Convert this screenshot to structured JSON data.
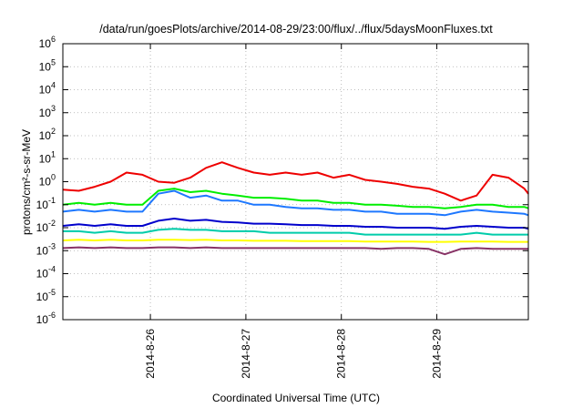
{
  "chart_data": {
    "type": "line",
    "title": "/data/run/goesPlots/archive/2014-08-29/23:00/flux/../flux/5daysMoonFluxes.txt",
    "xlabel": "Coordinated Universal Time (UTC)",
    "ylabel": "protons/cm²-s-sr-MeV",
    "y_scale": "log",
    "y_exponent_range": [
      -6,
      6
    ],
    "y_tick_base": "10",
    "y_tick_exponents": [
      "-6",
      "-5",
      "-4",
      "-3",
      "-2",
      "-1",
      "0",
      "1",
      "2",
      "3",
      "4",
      "5",
      "6"
    ],
    "x_range": [
      "2014-08-25 02:00",
      "2014-08-29 23:00"
    ],
    "x_tick_labels": [
      "2014-8-26",
      "2014-8-27",
      "2014-8-28",
      "2014-8-29"
    ],
    "grid": true,
    "x": [
      "2014-08-25 02:00",
      "2014-08-25 06:00",
      "2014-08-25 10:00",
      "2014-08-25 14:00",
      "2014-08-25 18:00",
      "2014-08-25 22:00",
      "2014-08-26 02:00",
      "2014-08-26 06:00",
      "2014-08-26 10:00",
      "2014-08-26 14:00",
      "2014-08-26 18:00",
      "2014-08-26 22:00",
      "2014-08-27 02:00",
      "2014-08-27 06:00",
      "2014-08-27 10:00",
      "2014-08-27 14:00",
      "2014-08-27 18:00",
      "2014-08-27 22:00",
      "2014-08-28 02:00",
      "2014-08-28 06:00",
      "2014-08-28 10:00",
      "2014-08-28 14:00",
      "2014-08-28 18:00",
      "2014-08-28 22:00",
      "2014-08-29 02:00",
      "2014-08-29 06:00",
      "2014-08-29 10:00",
      "2014-08-29 14:00",
      "2014-08-29 18:00",
      "2014-08-29 22:00",
      "2014-08-29 23:00"
    ],
    "series": [
      {
        "color": "#ee0000",
        "values": [
          0.45,
          0.4,
          0.6,
          1.0,
          2.5,
          2.0,
          1.0,
          0.9,
          1.5,
          4.0,
          7.0,
          4.0,
          2.5,
          2.0,
          2.5,
          2.0,
          2.5,
          1.5,
          2.0,
          1.2,
          1.0,
          0.8,
          0.6,
          0.5,
          0.3,
          0.15,
          0.25,
          2.0,
          1.5,
          0.5,
          0.3
        ]
      },
      {
        "color": "#00ee00",
        "values": [
          0.1,
          0.12,
          0.1,
          0.12,
          0.1,
          0.1,
          0.4,
          0.5,
          0.35,
          0.4,
          0.3,
          0.25,
          0.2,
          0.2,
          0.18,
          0.15,
          0.15,
          0.12,
          0.12,
          0.1,
          0.1,
          0.09,
          0.08,
          0.08,
          0.07,
          0.08,
          0.1,
          0.1,
          0.08,
          0.08,
          0.07
        ]
      },
      {
        "color": "#1e78ff",
        "values": [
          0.05,
          0.06,
          0.05,
          0.06,
          0.05,
          0.05,
          0.3,
          0.4,
          0.2,
          0.25,
          0.15,
          0.15,
          0.1,
          0.1,
          0.08,
          0.07,
          0.07,
          0.06,
          0.06,
          0.05,
          0.05,
          0.04,
          0.04,
          0.04,
          0.035,
          0.05,
          0.06,
          0.05,
          0.045,
          0.04,
          0.035
        ]
      },
      {
        "color": "#0000cc",
        "values": [
          0.012,
          0.014,
          0.012,
          0.014,
          0.012,
          0.012,
          0.02,
          0.025,
          0.02,
          0.022,
          0.018,
          0.017,
          0.015,
          0.015,
          0.014,
          0.013,
          0.013,
          0.012,
          0.012,
          0.011,
          0.011,
          0.01,
          0.01,
          0.01,
          0.009,
          0.011,
          0.012,
          0.011,
          0.01,
          0.01,
          0.009
        ]
      },
      {
        "color": "#00ccaa",
        "values": [
          0.007,
          0.007,
          0.006,
          0.007,
          0.006,
          0.006,
          0.008,
          0.009,
          0.008,
          0.008,
          0.007,
          0.007,
          0.007,
          0.006,
          0.006,
          0.006,
          0.006,
          0.006,
          0.006,
          0.005,
          0.005,
          0.005,
          0.005,
          0.005,
          0.005,
          0.005,
          0.006,
          0.005,
          0.005,
          0.005,
          0.005
        ]
      },
      {
        "color": "#ffff00",
        "values": [
          0.0028,
          0.003,
          0.0028,
          0.003,
          0.0028,
          0.0028,
          0.003,
          0.003,
          0.0029,
          0.003,
          0.0028,
          0.0028,
          0.0027,
          0.0027,
          0.0027,
          0.0026,
          0.0026,
          0.0026,
          0.0026,
          0.0025,
          0.0025,
          0.0025,
          0.0025,
          0.0024,
          0.0024,
          0.0025,
          0.0025,
          0.0025,
          0.0024,
          0.0024,
          0.0024
        ]
      },
      {
        "color": "#883366",
        "values": [
          0.0013,
          0.0014,
          0.0013,
          0.0014,
          0.0013,
          0.0013,
          0.0014,
          0.0014,
          0.0013,
          0.0014,
          0.0013,
          0.0013,
          0.0013,
          0.0013,
          0.0013,
          0.0013,
          0.0013,
          0.0013,
          0.0013,
          0.0013,
          0.0012,
          0.0013,
          0.0013,
          0.0012,
          0.0007,
          0.0012,
          0.0013,
          0.0012,
          0.0012,
          0.0012,
          0.0012
        ]
      }
    ]
  }
}
